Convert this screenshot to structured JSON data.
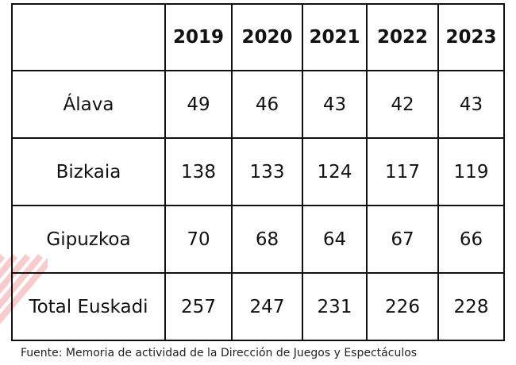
{
  "table": {
    "header": [
      "",
      "2019",
      "2020",
      "2021",
      "2022",
      "2023"
    ],
    "rows": [
      {
        "label": "Álava",
        "values": [
          "49",
          "46",
          "43",
          "42",
          "43"
        ]
      },
      {
        "label": "Bizkaia",
        "values": [
          "138",
          "133",
          "124",
          "117",
          "119"
        ]
      },
      {
        "label": "Gipuzkoa",
        "values": [
          "70",
          "68",
          "64",
          "67",
          "66"
        ]
      },
      {
        "label": "Total Euskadi",
        "values": [
          "257",
          "247",
          "231",
          "226",
          "228"
        ]
      }
    ]
  },
  "source": "Fuente: Memoria  de actividad de la Dirección de Juegos y Espectáculos",
  "colors": {
    "border": "#111111",
    "decoration": "#f2a3a3"
  }
}
